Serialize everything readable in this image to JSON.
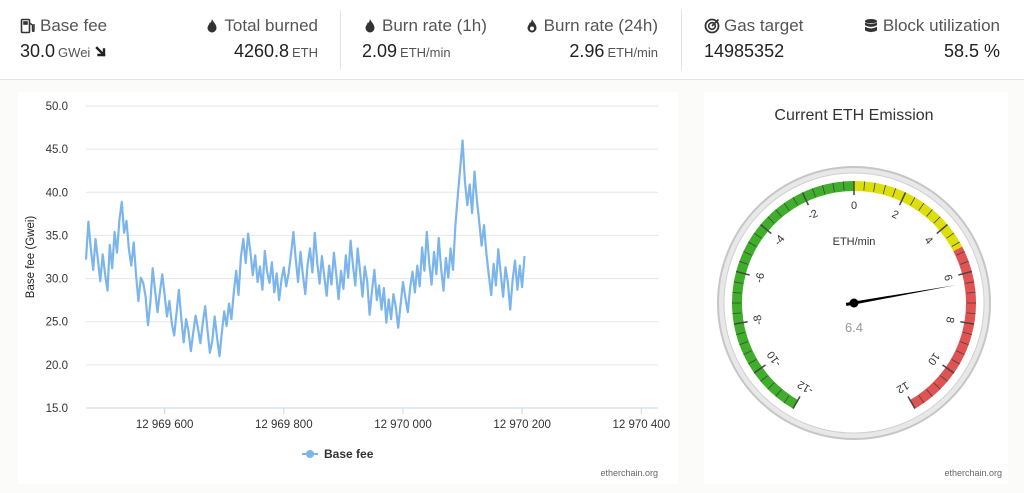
{
  "stats": {
    "base_fee": {
      "label": "Base fee",
      "value": "30.0",
      "unit": "GWei",
      "trend_icon": "arrow-down-right-icon"
    },
    "total_burned": {
      "label": "Total burned",
      "value": "4260.8",
      "unit": "ETH"
    },
    "burn_rate_1h": {
      "label": "Burn rate (1h)",
      "value": "2.09",
      "unit": "ETH/min"
    },
    "burn_rate_24h": {
      "label": "Burn rate (24h)",
      "value": "2.96",
      "unit": "ETH/min"
    },
    "gas_target": {
      "label": "Gas target",
      "value": "14985352"
    },
    "block_utilization": {
      "label": "Block utilization",
      "value": "58.5 %"
    }
  },
  "chart_data": [
    {
      "type": "line",
      "title": "",
      "xlabel": "",
      "ylabel": "Base fee (Gwei)",
      "ylim": [
        15,
        50
      ],
      "xlim": [
        12969468,
        12970428
      ],
      "yticks": [
        "15.0",
        "20.0",
        "25.0",
        "30.0",
        "35.0",
        "40.0",
        "45.0",
        "50.0"
      ],
      "xticks": [
        {
          "value": 12969600,
          "label": "12 969 600"
        },
        {
          "value": 12969800,
          "label": "12 969 800"
        },
        {
          "value": 12970000,
          "label": "12 970 000"
        },
        {
          "value": 12970200,
          "label": "12 970 200"
        },
        {
          "value": 12970400,
          "label": "12 970 400"
        }
      ],
      "grid": true,
      "legend": "bottom-center",
      "series": [
        {
          "name": "Base fee",
          "color": "#7cb5ec",
          "x_start": 12969468,
          "x_step": 4,
          "values": [
            32.2,
            36.6,
            33.5,
            31.0,
            34.6,
            32.2,
            29.7,
            32.8,
            30.5,
            28.6,
            33.9,
            31.2,
            35.4,
            33.0,
            36.8,
            38.9,
            35.3,
            36.7,
            33.4,
            31.5,
            34.2,
            30.5,
            27.4,
            30.1,
            29.5,
            27.9,
            24.6,
            27.3,
            31.2,
            28.6,
            26.1,
            28.4,
            30.5,
            28.0,
            25.6,
            27.4,
            24.8,
            23.4,
            26.1,
            28.7,
            25.4,
            22.6,
            25.3,
            23.9,
            21.6,
            23.8,
            25.7,
            24.2,
            22.5,
            24.9,
            26.8,
            23.9,
            21.4,
            22.8,
            25.6,
            23.1,
            21.0,
            23.7,
            26.2,
            24.5,
            27.1,
            25.3,
            28.4,
            30.9,
            28.1,
            32.5,
            34.6,
            31.8,
            35.2,
            33.1,
            30.4,
            32.7,
            29.6,
            31.4,
            28.7,
            33.2,
            30.8,
            29.5,
            31.9,
            28.4,
            30.6,
            27.5,
            29.8,
            31.3,
            29.1,
            30.6,
            32.8,
            35.4,
            32.3,
            29.6,
            33.1,
            30.4,
            28.2,
            31.6,
            33.5,
            30.7,
            35.3,
            31.9,
            29.4,
            32.6,
            30.2,
            28.0,
            31.5,
            29.3,
            33.0,
            30.4,
            27.6,
            30.9,
            28.8,
            32.7,
            30.1,
            34.4,
            31.6,
            29.2,
            33.5,
            30.8,
            27.9,
            31.4,
            29.7,
            25.8,
            28.6,
            31.0,
            27.5,
            29.2,
            26.4,
            28.9,
            24.9,
            27.6,
            25.3,
            28.2,
            26.7,
            24.3,
            27.0,
            29.6,
            27.8,
            26.1,
            28.9,
            30.8,
            28.4,
            31.5,
            29.1,
            33.6,
            30.9,
            35.4,
            31.8,
            29.3,
            33.1,
            30.5,
            34.7,
            31.2,
            28.6,
            32.4,
            30.1,
            33.5,
            31.0,
            36.2,
            39.6,
            42.8,
            46.0,
            41.3,
            38.5,
            40.9,
            37.6,
            42.4,
            39.1,
            36.5,
            33.8,
            36.2,
            32.9,
            30.4,
            28.1,
            31.7,
            29.2,
            33.4,
            30.6,
            27.9,
            31.3,
            29.5,
            26.4,
            29.8,
            32.1,
            28.7,
            31.5,
            29.0,
            32.6
          ]
        }
      ]
    },
    {
      "type": "gauge",
      "title": "Current ETH Emission",
      "unit_label": "ETH/min",
      "value": 6.4,
      "value_label": "6.4",
      "range": [
        -12,
        12
      ],
      "tick_labels": [
        "-12",
        "-10",
        "-8",
        "-6",
        "-4",
        "-2",
        "0",
        "2",
        "4",
        "6",
        "8",
        "10",
        "12"
      ],
      "bands": [
        {
          "from": -12,
          "to": 0,
          "color": "#3fae2a"
        },
        {
          "from": 0,
          "to": 5,
          "color": "#dddf0d"
        },
        {
          "from": 5,
          "to": 12,
          "color": "#df5353"
        }
      ]
    }
  ],
  "footer": {
    "credit_left": "etherchain.org",
    "credit_right": "etherchain.org"
  }
}
